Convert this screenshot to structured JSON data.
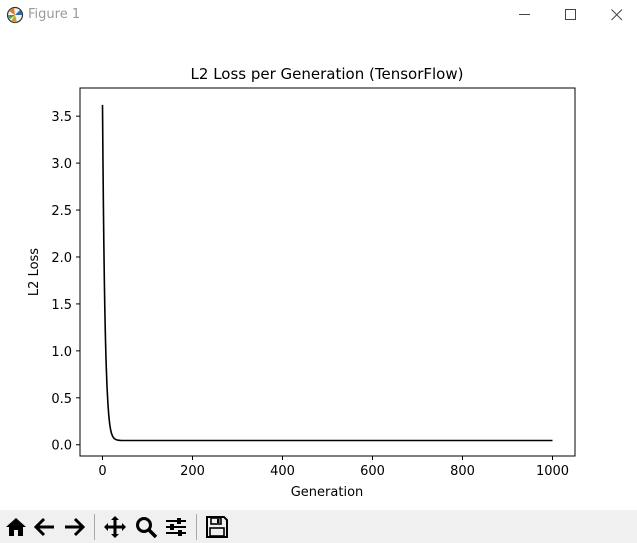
{
  "window": {
    "title": "Figure 1",
    "app_icon": "matplotlib-icon",
    "controls": [
      "minimize-icon",
      "maximize-icon",
      "close-icon"
    ]
  },
  "toolbar": {
    "buttons": [
      {
        "name": "home-button",
        "icon": "home-icon"
      },
      {
        "name": "back-button",
        "icon": "arrow-left-icon"
      },
      {
        "name": "forward-button",
        "icon": "arrow-right-icon"
      },
      {
        "name": "pan-button",
        "icon": "move-icon"
      },
      {
        "name": "zoom-button",
        "icon": "magnifier-icon"
      },
      {
        "name": "subplots-button",
        "icon": "sliders-icon"
      },
      {
        "name": "save-button",
        "icon": "floppy-disk-icon"
      }
    ]
  },
  "chart_data": {
    "type": "line",
    "title": "L2 Loss per Generation (TensorFlow)",
    "xlabel": "Generation",
    "ylabel": "L2 Loss",
    "xlim": [
      -50,
      1050
    ],
    "ylim": [
      -0.12,
      3.8
    ],
    "xticks": [
      0,
      200,
      400,
      600,
      800,
      1000
    ],
    "yticks": [
      0.0,
      0.5,
      1.0,
      1.5,
      2.0,
      2.5,
      3.0,
      3.5
    ],
    "xtick_labels": [
      "0",
      "200",
      "400",
      "600",
      "800",
      "1000"
    ],
    "ytick_labels": [
      "0.0",
      "0.5",
      "1.0",
      "1.5",
      "2.0",
      "2.5",
      "3.0",
      "3.5"
    ],
    "grid": false,
    "series": [
      {
        "color": "#000000",
        "x": [
          0,
          1,
          2,
          3,
          4,
          5,
          6,
          7,
          8,
          10,
          12,
          14,
          16,
          18,
          20,
          23,
          26,
          30,
          35,
          40,
          50,
          70,
          100,
          200,
          300,
          400,
          500,
          600,
          700,
          800,
          900,
          1000
        ],
        "y": [
          3.62,
          3.05,
          2.55,
          2.13,
          1.78,
          1.49,
          1.25,
          1.05,
          0.88,
          0.62,
          0.44,
          0.31,
          0.22,
          0.16,
          0.12,
          0.085,
          0.066,
          0.054,
          0.048,
          0.046,
          0.045,
          0.045,
          0.045,
          0.045,
          0.045,
          0.045,
          0.045,
          0.045,
          0.045,
          0.045,
          0.045,
          0.045
        ]
      }
    ]
  }
}
